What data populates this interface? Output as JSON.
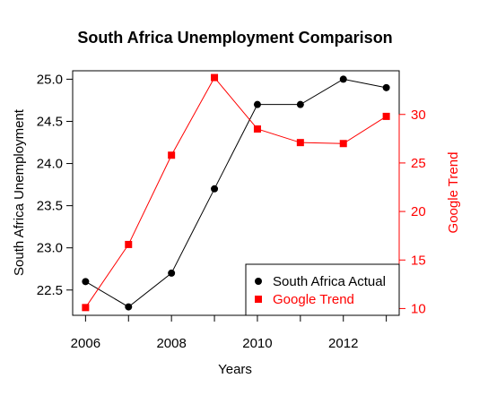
{
  "chart_data": {
    "type": "line",
    "title": "South Africa Unemployment Comparison",
    "xlabel": "Years",
    "ylabel": "South Africa Unemployment",
    "y2label": "Google Trend",
    "x": [
      2006,
      2007,
      2008,
      2009,
      2010,
      2011,
      2012,
      2013
    ],
    "xticks": [
      2006,
      2008,
      2010,
      2012
    ],
    "xlim": [
      2005.7,
      2013.3
    ],
    "ylim": [
      22.2,
      25.1
    ],
    "yticks": [
      22.5,
      23.0,
      23.5,
      24.0,
      24.5,
      25.0
    ],
    "y2lim": [
      9.3,
      34.5
    ],
    "y2ticks": [
      10,
      15,
      20,
      25,
      30
    ],
    "grid": false,
    "legend_position": "bottom-right",
    "series": [
      {
        "name": "South Africa Actual",
        "axis": "left",
        "color": "#000000",
        "marker": "circle",
        "values": [
          22.6,
          22.3,
          22.7,
          23.7,
          24.7,
          24.7,
          25.0,
          24.9
        ]
      },
      {
        "name": "Google Trend",
        "axis": "right",
        "color": "#ff0000",
        "marker": "square",
        "values": [
          10.1,
          16.6,
          25.8,
          33.8,
          28.5,
          27.1,
          27.0,
          29.8
        ]
      }
    ]
  }
}
